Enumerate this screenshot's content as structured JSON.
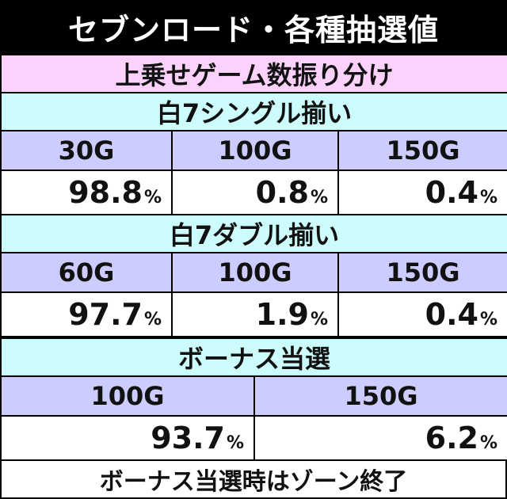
{
  "title": "セブンロード・各種抽選値",
  "subtitle": "上乗せゲーム数振り分け",
  "sections": [
    {
      "name": "白7シングル揃い",
      "headers": [
        "30G",
        "100G",
        "150G"
      ],
      "values": [
        "98.8",
        "0.8",
        "0.4"
      ]
    },
    {
      "name": "白7ダブル揃い",
      "headers": [
        "60G",
        "100G",
        "150G"
      ],
      "values": [
        "97.7",
        "1.9",
        "0.4"
      ]
    },
    {
      "name": "ボーナス当選",
      "headers": [
        "100G",
        "150G"
      ],
      "values": [
        "93.7",
        "6.2"
      ]
    }
  ],
  "percent_sign": "%",
  "footer": "ボーナス当選時はゾーン終了"
}
